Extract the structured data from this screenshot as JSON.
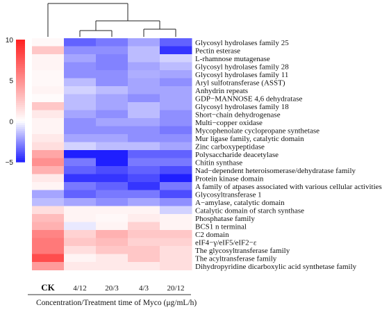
{
  "chart_data": {
    "type": "heatmap",
    "xlabel": "Concentration/Treatment time of Myco (μg/mL/h)",
    "columns": [
      "CK",
      "4/12",
      "20/3",
      "4/3",
      "20/12"
    ],
    "rows": [
      "Glycosyl hydrolases family 25",
      "Pectin esterase",
      "L-rhamnose mutagenase",
      "Glycosyl hydrolases family 28",
      "Glycosyl hydrolases family 11",
      "Aryl sulfotransferase (ASST)",
      "Anhydrin repeats",
      "GDP−MANNOSE 4,6 dehydratase",
      "Glycosyl hydrolases family 18",
      "Short−chain dehydrogenase",
      "Multi−copper oxidase",
      "Mycophenolate cyclopropane synthetase",
      "Mur ligase family, catalytic domain",
      "Zinc carboxypeptidase",
      "Polysaccharide deacetylase",
      "Chitin synthase",
      "Nad−dependent heteroisomerase/dehydratase family",
      "Protein kinase domain",
      "A family of atpases associated with various cellular activities (AAA)",
      "Glycosyltransferase 1",
      "A−amylase, catalytic domain",
      "Catalytic domain of starch synthase",
      "Phosphatase family",
      "BCS1 n terminal",
      "C2 domain",
      "eIF4−γ/eIF5/eIF2−ε",
      "The glycosyltransferase family",
      "The acyltransferase family",
      "Dihydropyridine dicarboxylic acid synthetase family"
    ],
    "values": [
      [
        0.3,
        -3.5,
        -3.0,
        -2.0,
        -3.5
      ],
      [
        2.5,
        -2.5,
        -2.5,
        -1.5,
        -4.5
      ],
      [
        0.5,
        -2.0,
        -2.8,
        -1.5,
        -1.0
      ],
      [
        0.5,
        -2.5,
        -2.8,
        -2.0,
        -1.5
      ],
      [
        0.3,
        -2.5,
        -2.5,
        -1.8,
        -2.0
      ],
      [
        0.3,
        -1.5,
        -2.5,
        -2.0,
        -2.5
      ],
      [
        0.5,
        -1.0,
        -1.5,
        -2.0,
        -2.0
      ],
      [
        0.2,
        -1.5,
        -2.0,
        -2.5,
        -2.0
      ],
      [
        2.5,
        -1.5,
        -2.0,
        -1.5,
        -2.0
      ],
      [
        1.0,
        -2.0,
        -2.5,
        -1.5,
        -2.5
      ],
      [
        0.5,
        -2.5,
        -2.0,
        -2.0,
        -2.5
      ],
      [
        0.5,
        -2.5,
        -2.5,
        -2.5,
        -3.0
      ],
      [
        1.0,
        -2.0,
        -2.0,
        -2.5,
        -2.5
      ],
      [
        1.5,
        -1.0,
        -1.5,
        -1.5,
        -2.0
      ],
      [
        4.0,
        -6.0,
        -5.5,
        -3.5,
        -3.5
      ],
      [
        5.0,
        -3.0,
        -5.0,
        -3.0,
        -3.0
      ],
      [
        3.5,
        -3.5,
        -4.0,
        -3.5,
        -4.0
      ],
      [
        1.0,
        -4.5,
        -4.5,
        -4.0,
        -6.0
      ],
      [
        0.5,
        -3.0,
        -3.5,
        -4.5,
        -3.0
      ],
      [
        -2.0,
        -3.5,
        -3.0,
        -3.0,
        -4.0
      ],
      [
        -1.5,
        -2.0,
        -2.5,
        -2.0,
        -2.5
      ],
      [
        1.5,
        0.5,
        0.5,
        0.5,
        -1.0
      ],
      [
        3.0,
        0.5,
        0.3,
        0.8,
        0.5
      ],
      [
        3.5,
        -0.5,
        0.5,
        2.0,
        0.5
      ],
      [
        5.5,
        2.0,
        3.5,
        2.5,
        2.5
      ],
      [
        6.0,
        2.5,
        3.0,
        2.0,
        2.0
      ],
      [
        6.0,
        1.5,
        2.5,
        2.5,
        1.5
      ],
      [
        8.0,
        0.5,
        1.0,
        2.5,
        1.5
      ],
      [
        4.5,
        1.0,
        1.0,
        1.0,
        1.5
      ]
    ],
    "colorbar": {
      "min": -5,
      "max": 10,
      "ticks": [
        "10",
        "5",
        "0",
        "−5"
      ]
    },
    "dendrogram": "column clustering: CK separate; (4/12, 20/3) and (4/3, 20/12)",
    "colors": {
      "low": "#1f1fff",
      "mid": "#ffffff",
      "high": "#ff2020"
    }
  }
}
